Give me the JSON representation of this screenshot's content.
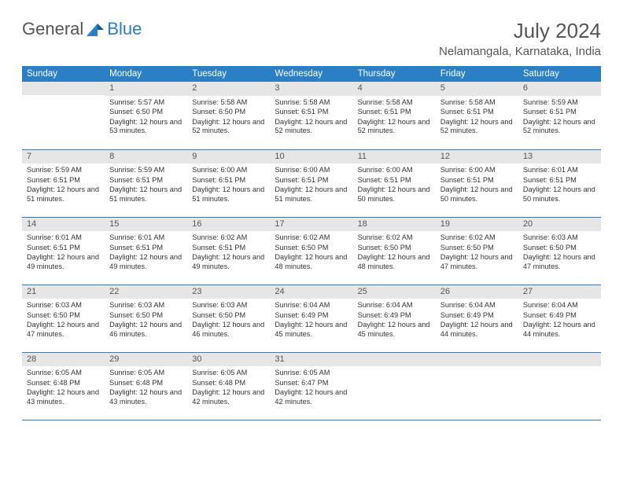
{
  "brand": {
    "a": "General",
    "b": "Blue"
  },
  "title": "July 2024",
  "location": "Nelamangala, Karnataka, India",
  "header_bg": "#2b7fc5",
  "daynum_bg": "#e6e6e6",
  "weekdays": [
    "Sunday",
    "Monday",
    "Tuesday",
    "Wednesday",
    "Thursday",
    "Friday",
    "Saturday"
  ],
  "start_offset": 1,
  "days": [
    {
      "n": "1",
      "sunrise": "5:57 AM",
      "sunset": "6:50 PM",
      "daylight": "12 hours and 53 minutes."
    },
    {
      "n": "2",
      "sunrise": "5:58 AM",
      "sunset": "6:50 PM",
      "daylight": "12 hours and 52 minutes."
    },
    {
      "n": "3",
      "sunrise": "5:58 AM",
      "sunset": "6:51 PM",
      "daylight": "12 hours and 52 minutes."
    },
    {
      "n": "4",
      "sunrise": "5:58 AM",
      "sunset": "6:51 PM",
      "daylight": "12 hours and 52 minutes."
    },
    {
      "n": "5",
      "sunrise": "5:58 AM",
      "sunset": "6:51 PM",
      "daylight": "12 hours and 52 minutes."
    },
    {
      "n": "6",
      "sunrise": "5:59 AM",
      "sunset": "6:51 PM",
      "daylight": "12 hours and 52 minutes."
    },
    {
      "n": "7",
      "sunrise": "5:59 AM",
      "sunset": "6:51 PM",
      "daylight": "12 hours and 51 minutes."
    },
    {
      "n": "8",
      "sunrise": "5:59 AM",
      "sunset": "6:51 PM",
      "daylight": "12 hours and 51 minutes."
    },
    {
      "n": "9",
      "sunrise": "6:00 AM",
      "sunset": "6:51 PM",
      "daylight": "12 hours and 51 minutes."
    },
    {
      "n": "10",
      "sunrise": "6:00 AM",
      "sunset": "6:51 PM",
      "daylight": "12 hours and 51 minutes."
    },
    {
      "n": "11",
      "sunrise": "6:00 AM",
      "sunset": "6:51 PM",
      "daylight": "12 hours and 50 minutes."
    },
    {
      "n": "12",
      "sunrise": "6:00 AM",
      "sunset": "6:51 PM",
      "daylight": "12 hours and 50 minutes."
    },
    {
      "n": "13",
      "sunrise": "6:01 AM",
      "sunset": "6:51 PM",
      "daylight": "12 hours and 50 minutes."
    },
    {
      "n": "14",
      "sunrise": "6:01 AM",
      "sunset": "6:51 PM",
      "daylight": "12 hours and 49 minutes."
    },
    {
      "n": "15",
      "sunrise": "6:01 AM",
      "sunset": "6:51 PM",
      "daylight": "12 hours and 49 minutes."
    },
    {
      "n": "16",
      "sunrise": "6:02 AM",
      "sunset": "6:51 PM",
      "daylight": "12 hours and 49 minutes."
    },
    {
      "n": "17",
      "sunrise": "6:02 AM",
      "sunset": "6:50 PM",
      "daylight": "12 hours and 48 minutes."
    },
    {
      "n": "18",
      "sunrise": "6:02 AM",
      "sunset": "6:50 PM",
      "daylight": "12 hours and 48 minutes."
    },
    {
      "n": "19",
      "sunrise": "6:02 AM",
      "sunset": "6:50 PM",
      "daylight": "12 hours and 47 minutes."
    },
    {
      "n": "20",
      "sunrise": "6:03 AM",
      "sunset": "6:50 PM",
      "daylight": "12 hours and 47 minutes."
    },
    {
      "n": "21",
      "sunrise": "6:03 AM",
      "sunset": "6:50 PM",
      "daylight": "12 hours and 47 minutes."
    },
    {
      "n": "22",
      "sunrise": "6:03 AM",
      "sunset": "6:50 PM",
      "daylight": "12 hours and 46 minutes."
    },
    {
      "n": "23",
      "sunrise": "6:03 AM",
      "sunset": "6:50 PM",
      "daylight": "12 hours and 46 minutes."
    },
    {
      "n": "24",
      "sunrise": "6:04 AM",
      "sunset": "6:49 PM",
      "daylight": "12 hours and 45 minutes."
    },
    {
      "n": "25",
      "sunrise": "6:04 AM",
      "sunset": "6:49 PM",
      "daylight": "12 hours and 45 minutes."
    },
    {
      "n": "26",
      "sunrise": "6:04 AM",
      "sunset": "6:49 PM",
      "daylight": "12 hours and 44 minutes."
    },
    {
      "n": "27",
      "sunrise": "6:04 AM",
      "sunset": "6:49 PM",
      "daylight": "12 hours and 44 minutes."
    },
    {
      "n": "28",
      "sunrise": "6:05 AM",
      "sunset": "6:48 PM",
      "daylight": "12 hours and 43 minutes."
    },
    {
      "n": "29",
      "sunrise": "6:05 AM",
      "sunset": "6:48 PM",
      "daylight": "12 hours and 43 minutes."
    },
    {
      "n": "30",
      "sunrise": "6:05 AM",
      "sunset": "6:48 PM",
      "daylight": "12 hours and 42 minutes."
    },
    {
      "n": "31",
      "sunrise": "6:05 AM",
      "sunset": "6:47 PM",
      "daylight": "12 hours and 42 minutes."
    }
  ],
  "labels": {
    "sunrise": "Sunrise: ",
    "sunset": "Sunset: ",
    "daylight": "Daylight: "
  }
}
